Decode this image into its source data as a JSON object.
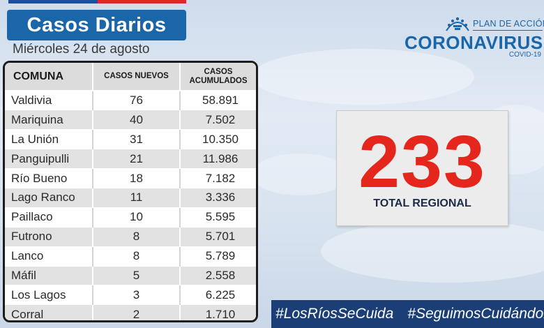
{
  "header": {
    "title": "Casos Diarios",
    "date": "Miércoles 24 de agosto"
  },
  "colors": {
    "title_bg": "#1a66a8",
    "total_number": "#e4261c",
    "hashtag_bg": "#1b3e77",
    "flag_blue": "#1d4f9c",
    "flag_red": "#e0262b"
  },
  "table": {
    "headers": {
      "comuna": "COMUNA",
      "nuevos": "CASOS NUEVOS",
      "acumulados_line1": "CASOS",
      "acumulados_line2": "ACUMULADOS"
    },
    "rows": [
      {
        "comuna": "Valdivia",
        "nuevos": "76",
        "acumulados": "58.891"
      },
      {
        "comuna": "Mariquina",
        "nuevos": "40",
        "acumulados": "7.502"
      },
      {
        "comuna": "La Unión",
        "nuevos": "31",
        "acumulados": "10.350"
      },
      {
        "comuna": "Panguipulli",
        "nuevos": "21",
        "acumulados": "11.986"
      },
      {
        "comuna": "Río Bueno",
        "nuevos": "18",
        "acumulados": "7.182"
      },
      {
        "comuna": "Lago Ranco",
        "nuevos": "11",
        "acumulados": "3.336"
      },
      {
        "comuna": "Paillaco",
        "nuevos": "10",
        "acumulados": "5.595"
      },
      {
        "comuna": "Futrono",
        "nuevos": "8",
        "acumulados": "5.701"
      },
      {
        "comuna": "Lanco",
        "nuevos": "8",
        "acumulados": "5.789"
      },
      {
        "comuna": "Máfil",
        "nuevos": "5",
        "acumulados": "2.558"
      },
      {
        "comuna": "Los Lagos",
        "nuevos": "3",
        "acumulados": "6.225"
      },
      {
        "comuna": "Corral",
        "nuevos": "2",
        "acumulados": "1.710"
      }
    ]
  },
  "logo": {
    "plan": "PLAN DE ACCIÓN",
    "name": "CORONAVIRUS",
    "sub": "COVID-19",
    "icon": "crown-emblem-icon"
  },
  "total": {
    "value": "233",
    "label": "TOTAL REGIONAL"
  },
  "hashtags": [
    "#LosRíosSeCuida",
    "#SeguimosCuidándonos"
  ]
}
